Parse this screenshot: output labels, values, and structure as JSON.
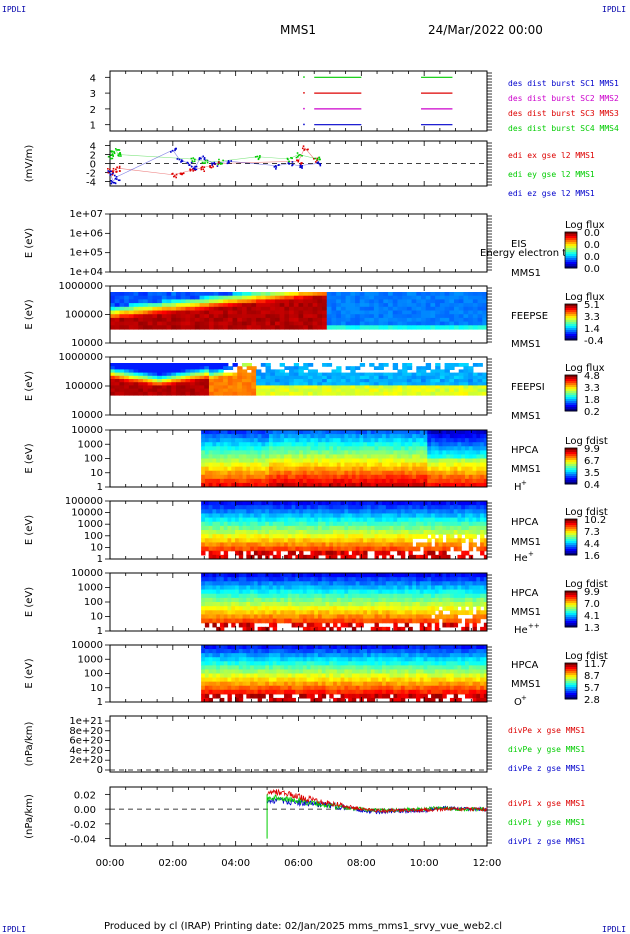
{
  "header": {
    "corner_left_top": "IPDLI",
    "corner_right_top": "IPDLI",
    "corner_left_bottom": "IPDLI",
    "corner_right_bottom": "IPDLI",
    "mission": "MMS1",
    "date": "24/Mar/2022 00:00"
  },
  "footer": {
    "text": "Produced by cl (IRAP)   Printing date: 02/Jan/2025   mms_mms1_srvy_vue_web2.cl"
  },
  "colors": {
    "green": "#00cc00",
    "red": "#dd0000",
    "magenta": "#cc00cc",
    "blue": "#0000cc",
    "text_blue": "#0000aa"
  },
  "chart_data": [
    {
      "id": "p1",
      "type": "scatter",
      "ylim": [
        0.6,
        4.4
      ],
      "yticks": [
        "1",
        "2",
        "3",
        "4"
      ],
      "ylabel": "",
      "legend": [
        {
          "text": "des dist burst SC1 MMS1",
          "color": "#0000cc"
        },
        {
          "text": "des dist burst SC2 MMS2",
          "color": "#cc00cc"
        },
        {
          "text": "des dist burst SC3 MMS3",
          "color": "#dd0000"
        },
        {
          "text": "des dist burst SC4 MMS4",
          "color": "#00cc00"
        }
      ],
      "series": [
        {
          "y": 4,
          "color": "#00cc00",
          "segments": [
            [
              6.5,
              8.0
            ],
            [
              9.9,
              10.9
            ]
          ],
          "dot": 6.15
        },
        {
          "y": 3,
          "color": "#dd0000",
          "segments": [
            [
              6.5,
              8.0
            ],
            [
              9.9,
              10.9
            ]
          ],
          "dot": 6.15
        },
        {
          "y": 2,
          "color": "#cc00cc",
          "segments": [
            [
              6.5,
              8.0
            ],
            [
              9.9,
              10.9
            ]
          ],
          "dot": 6.15
        },
        {
          "y": 1,
          "color": "#0000cc",
          "segments": [
            [
              6.5,
              8.0
            ],
            [
              9.9,
              10.9
            ]
          ],
          "dot": 6.15
        }
      ]
    },
    {
      "id": "p2",
      "type": "line",
      "ylabel": "(mV/m)",
      "ylim": [
        -5,
        5
      ],
      "yticks": [
        "4",
        "2",
        "0",
        "-2",
        "-4"
      ],
      "legend": [
        {
          "text": "edi ex gse l2 MMS1",
          "color": "#dd0000"
        },
        {
          "text": "edi ey gse l2 MMS1",
          "color": "#00cc00"
        },
        {
          "text": "edi ez gse l2 MMS1",
          "color": "#0000cc"
        }
      ],
      "series": [
        {
          "name": "edi ex gse l2 MMS1",
          "color": "#dd0000",
          "x": [
            0.0,
            0.1,
            0.2,
            2.0,
            2.3,
            2.6,
            2.9,
            3.2,
            3.4,
            6.0,
            6.2,
            6.5
          ],
          "y": [
            -1.5,
            -2.0,
            -1.0,
            -2.5,
            -2.0,
            -1.5,
            -1.0,
            -0.5,
            0.0,
            0.5,
            3.5,
            1.0
          ]
        },
        {
          "name": "edi ey gse l2 MMS1",
          "color": "#00cc00",
          "x": [
            0.0,
            0.1,
            0.2,
            0.25,
            2.6,
            3.0,
            3.5,
            4.7,
            5.7,
            6.0,
            6.6
          ],
          "y": [
            1.5,
            2.5,
            3.0,
            2.0,
            1.0,
            0.5,
            0.5,
            1.5,
            1.0,
            2.0,
            1.0
          ]
        },
        {
          "name": "edi ez gse l2 MMS1",
          "color": "#0000cc",
          "x": [
            0.0,
            0.1,
            0.2,
            2.0,
            2.2,
            2.5,
            2.7,
            2.9,
            3.3,
            3.8,
            5.3,
            5.7,
            6.0,
            6.6
          ],
          "y": [
            -2.0,
            -4.0,
            -3.0,
            3.0,
            1.0,
            0.0,
            -1.0,
            1.5,
            0.0,
            0.5,
            -0.5,
            0.0,
            -0.5,
            0.0
          ]
        }
      ]
    },
    {
      "id": "p3",
      "type": "heatmap",
      "ylabel": "E (eV)",
      "yticks": [
        "1e+07",
        "1e+06",
        "1e+05",
        "1e+04"
      ],
      "right_labels": [
        "EIS",
        "MMS1"
      ],
      "overlay_text": "Energy electron to",
      "cb_title": "Log flux",
      "cb_ticks": [
        "0.0",
        "0.0",
        "0.0",
        "0.0"
      ]
    },
    {
      "id": "p4",
      "type": "heatmap",
      "ylabel": "E (eV)",
      "yticks": [
        "1000000",
        "100000",
        "10000"
      ],
      "right_labels": [
        "FEEPSE",
        "MMS1"
      ],
      "cb_title": "Log flux",
      "cb_ticks": [
        "5.1",
        "3.3",
        "1.4",
        "-0.4"
      ]
    },
    {
      "id": "p5",
      "type": "heatmap",
      "ylabel": "E (eV)",
      "yticks": [
        "1000000",
        "100000",
        "10000"
      ],
      "right_labels": [
        "FEEPSI",
        "MMS1"
      ],
      "cb_title": "Log flux",
      "cb_ticks": [
        "4.8",
        "3.3",
        "1.8",
        "0.2"
      ]
    },
    {
      "id": "p6",
      "type": "heatmap",
      "ylabel": "E (eV)",
      "yticks": [
        "10000",
        "1000",
        "100",
        "10",
        "1"
      ],
      "right_labels": [
        "HPCA",
        "MMS1"
      ],
      "species": "H",
      "species_sup": "+",
      "cb_title": "Log fdist",
      "cb_ticks": [
        "9.9",
        "6.7",
        "3.5",
        "0.4"
      ]
    },
    {
      "id": "p7",
      "type": "heatmap",
      "ylabel": "E (eV)",
      "yticks": [
        "100000",
        "10000",
        "1000",
        "100",
        "10",
        "1"
      ],
      "right_labels": [
        "HPCA",
        "MMS1"
      ],
      "species": "He",
      "species_sup": "+",
      "cb_title": "Log fdist",
      "cb_ticks": [
        "10.2",
        "7.3",
        "4.4",
        "1.6"
      ]
    },
    {
      "id": "p8",
      "type": "heatmap",
      "ylabel": "E (eV)",
      "yticks": [
        "10000",
        "1000",
        "100",
        "10",
        "1"
      ],
      "right_labels": [
        "HPCA",
        "MMS1"
      ],
      "species": "He",
      "species_sup": "++",
      "cb_title": "Log fdist",
      "cb_ticks": [
        "9.9",
        "7.0",
        "4.1",
        "1.3"
      ]
    },
    {
      "id": "p9",
      "type": "heatmap",
      "ylabel": "E (eV)",
      "yticks": [
        "10000",
        "1000",
        "100",
        "10",
        "1"
      ],
      "right_labels": [
        "HPCA",
        "MMS1"
      ],
      "species": "O",
      "species_sup": "+",
      "cb_title": "Log fdist",
      "cb_ticks": [
        "11.7",
        "8.7",
        "5.7",
        "2.8"
      ]
    },
    {
      "id": "p10",
      "type": "line",
      "ylabel": "(nPa/km)",
      "yticks": [
        "1e+21",
        "8e+20",
        "6e+20",
        "4e+20",
        "2e+20",
        "0"
      ],
      "legend": [
        {
          "text": "divPe x gse MMS1",
          "color": "#dd0000"
        },
        {
          "text": "divPe y gse MMS1",
          "color": "#00cc00"
        },
        {
          "text": "divPe z gse MMS1",
          "color": "#0000cc"
        }
      ]
    },
    {
      "id": "p11",
      "type": "line",
      "ylabel": "(nPa/km)",
      "ylim": [
        -0.05,
        0.03
      ],
      "yticks": [
        "0.02",
        "0.00",
        "-0.02",
        "-0.04"
      ],
      "legend": [
        {
          "text": "divPi x gse MMS1",
          "color": "#dd0000"
        },
        {
          "text": "divPi y gse MMS1",
          "color": "#00cc00"
        },
        {
          "text": "divPi z gse MMS1",
          "color": "#0000cc"
        }
      ],
      "series": [
        {
          "name": "divPi x gse MMS1",
          "color": "#dd0000",
          "x": [
            5.0,
            5.3,
            5.7,
            6.2,
            6.8,
            7.4,
            8.0,
            8.6,
            9.2,
            10.0,
            10.6,
            11.2,
            12.0
          ],
          "y": [
            0.02,
            0.023,
            0.02,
            0.015,
            0.01,
            0.005,
            0.0,
            -0.002,
            -0.002,
            -0.001,
            0.0,
            0.0,
            0.0
          ]
        },
        {
          "name": "divPi y gse MMS1",
          "color": "#00cc00",
          "x": [
            5.0,
            5.3,
            5.7,
            6.2,
            6.8,
            7.4,
            8.0,
            8.6,
            9.2,
            10.0,
            10.6,
            11.2,
            12.0
          ],
          "y": [
            0.012,
            0.016,
            0.013,
            0.01,
            0.006,
            0.003,
            0.0,
            -0.002,
            -0.001,
            0.0,
            0.002,
            0.0,
            0.0
          ]
        },
        {
          "name": "divPi z gse MMS1",
          "color": "#0000cc",
          "x": [
            5.0,
            5.3,
            5.7,
            6.2,
            6.8,
            7.4,
            8.0,
            8.6,
            9.2,
            10.0,
            10.6,
            11.2,
            12.0
          ],
          "y": [
            0.01,
            0.012,
            0.01,
            0.008,
            0.006,
            0.003,
            -0.002,
            -0.004,
            -0.003,
            -0.002,
            0.002,
            0.0,
            0.0
          ]
        }
      ]
    }
  ],
  "xaxis": {
    "xlim": [
      0,
      12
    ],
    "ticks": [
      "00:00",
      "02:00",
      "04:00",
      "06:00",
      "08:00",
      "10:00",
      "12:00"
    ]
  }
}
